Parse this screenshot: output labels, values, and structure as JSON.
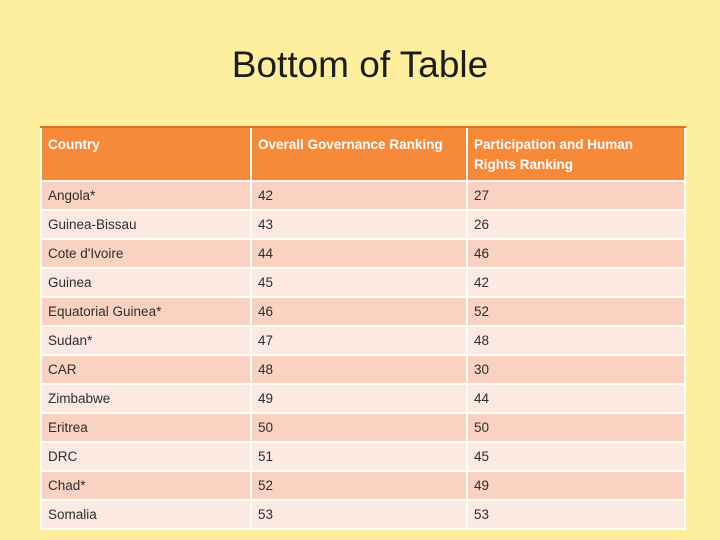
{
  "slide": {
    "title": "Bottom of Table",
    "background_color": "#FDEF9D"
  },
  "table": {
    "columns": [
      "Country",
      "Overall Governance Ranking",
      "Participation and Human Rights Ranking"
    ],
    "rows": [
      {
        "country": "Angola*",
        "overall": "42",
        "participation": "27"
      },
      {
        "country": "Guinea-Bissau",
        "overall": "43",
        "participation": "26"
      },
      {
        "country": "Cote d'Ivoire",
        "overall": "44",
        "participation": "46"
      },
      {
        "country": "Guinea",
        "overall": "45",
        "participation": "42"
      },
      {
        "country": "Equatorial Guinea*",
        "overall": "46",
        "participation": "52"
      },
      {
        "country": "Sudan*",
        "overall": "47",
        "participation": "48"
      },
      {
        "country": "CAR",
        "overall": "48",
        "participation": "30"
      },
      {
        "country": "Zimbabwe",
        "overall": "49",
        "participation": "44"
      },
      {
        "country": "Eritrea",
        "overall": "50",
        "participation": "50"
      },
      {
        "country": "DRC",
        "overall": "51",
        "participation": "45"
      },
      {
        "country": "Chad*",
        "overall": "52",
        "participation": "49"
      },
      {
        "country": "Somalia",
        "overall": "53",
        "participation": "53"
      }
    ],
    "colors": {
      "header_bg": "#F78A38",
      "header_text": "#FFFFFF",
      "header_top_border": "#E0701E",
      "row_odd_bg": "#FAD2C2",
      "row_even_bg": "#FCE9E1",
      "divider": "#FFFFFF"
    }
  }
}
